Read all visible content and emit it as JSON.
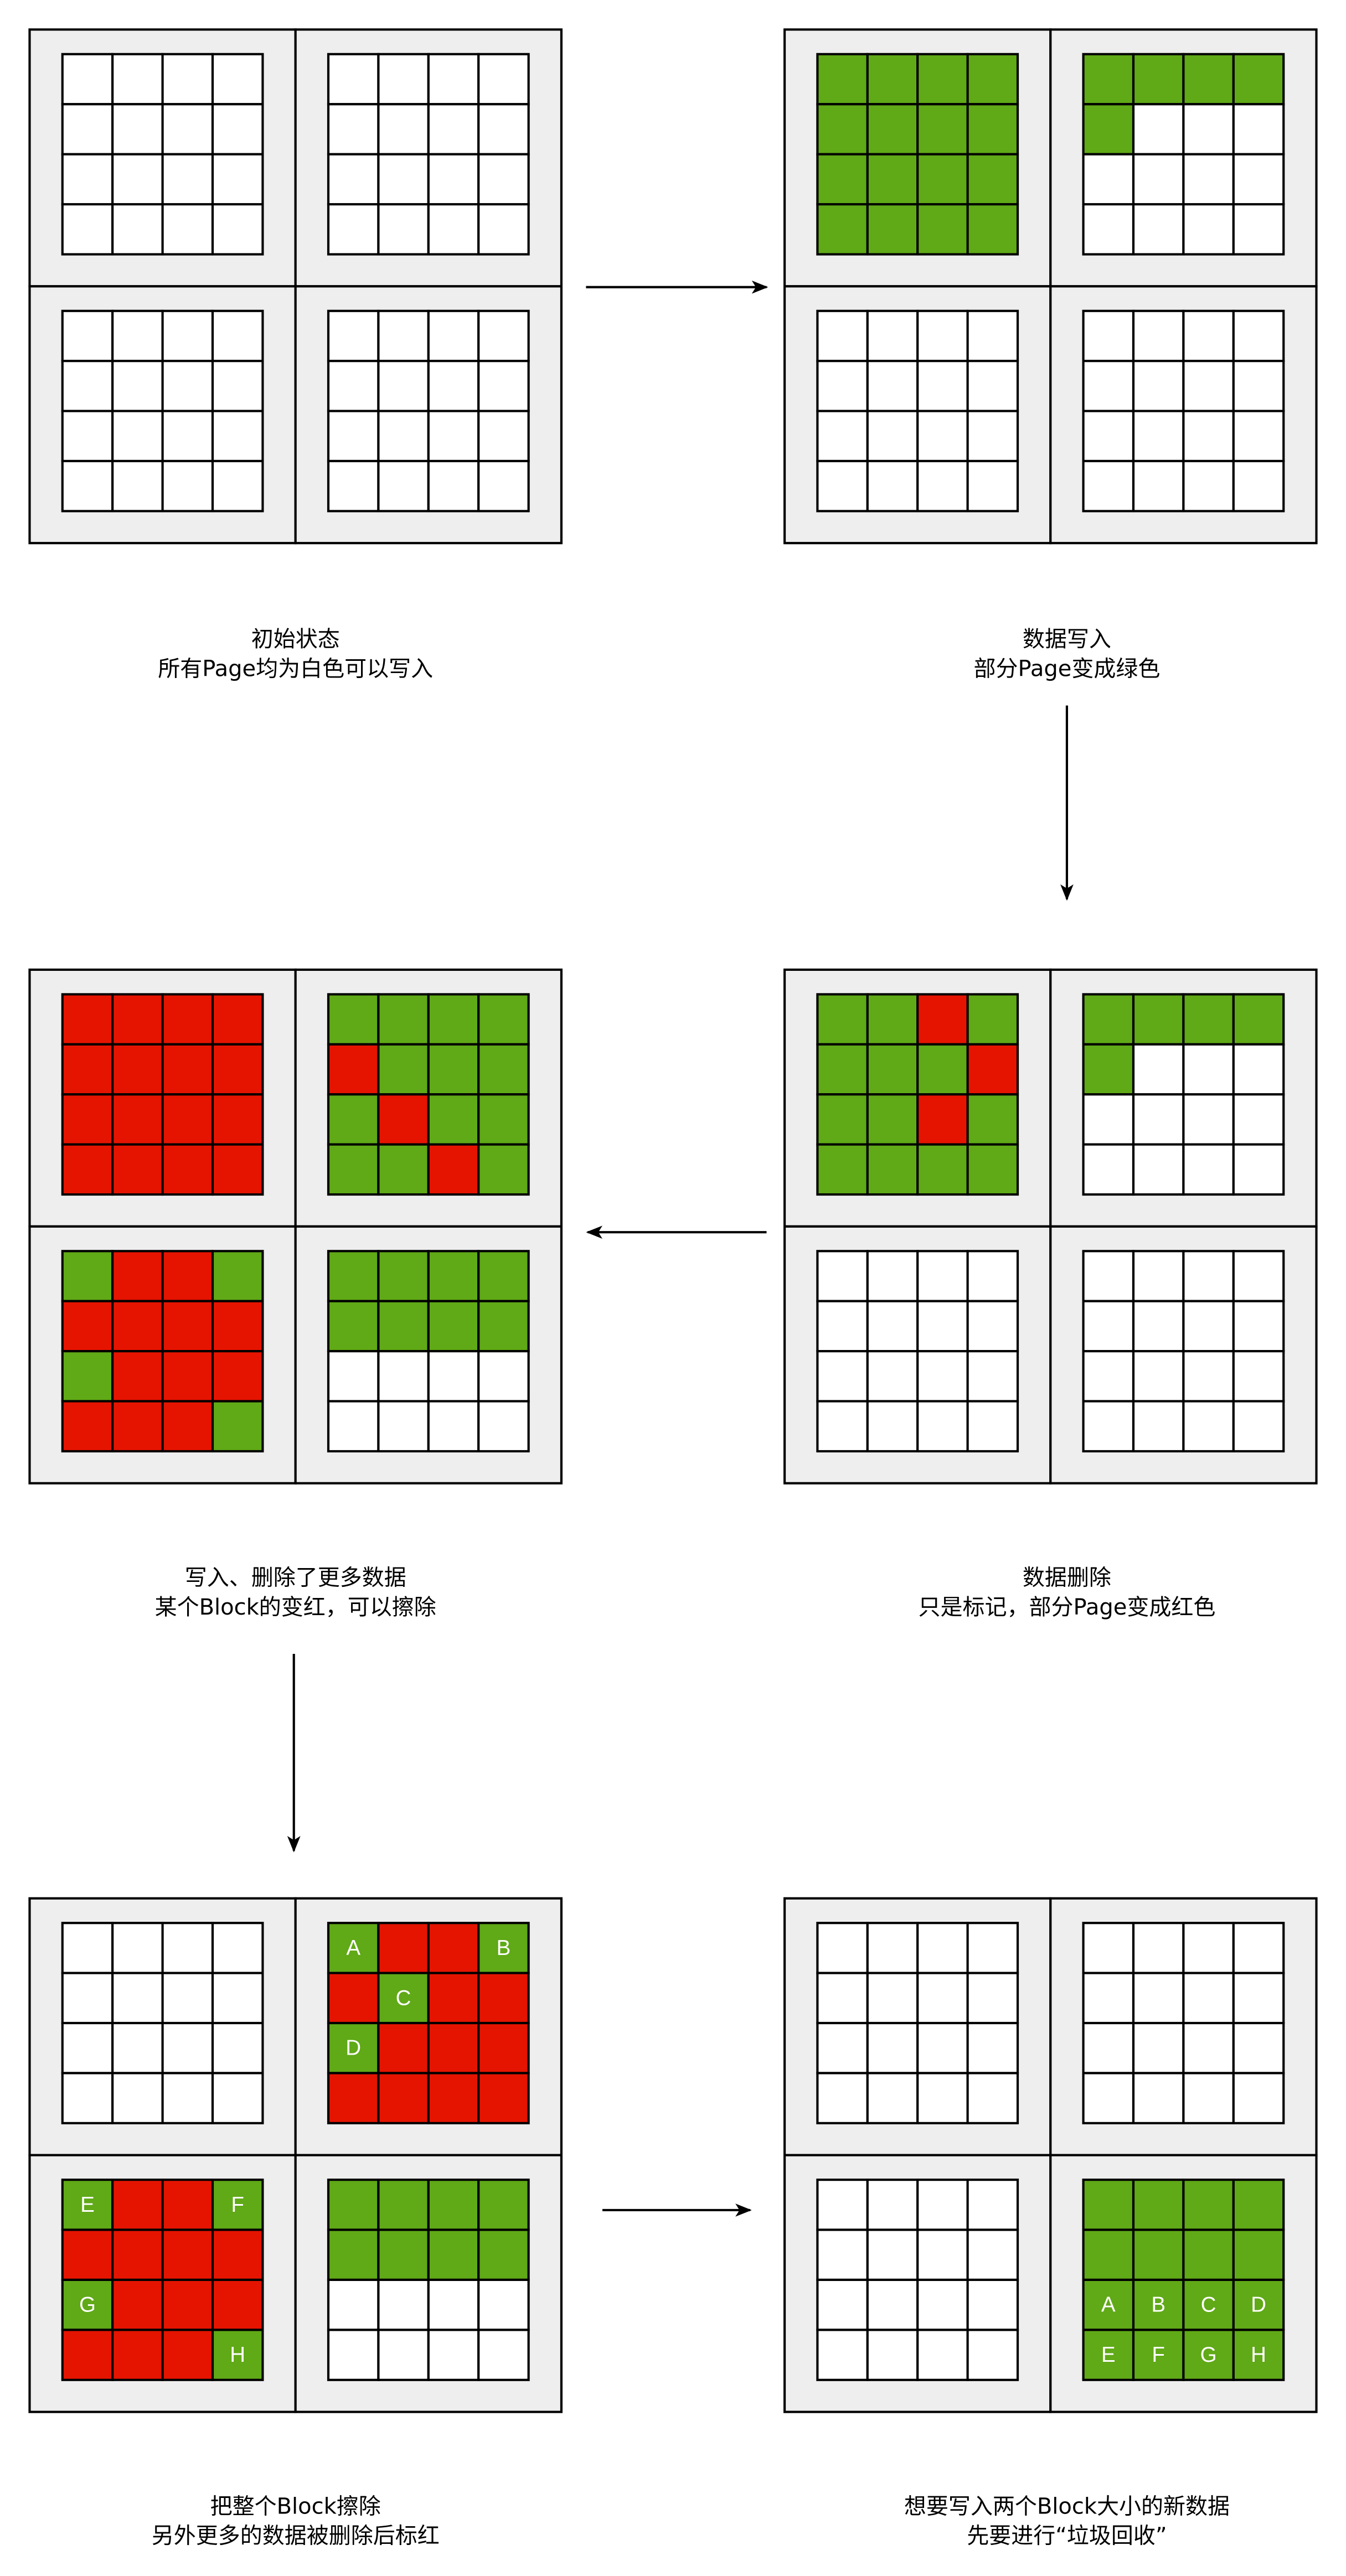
{
  "colors": {
    "white": "#ffffff",
    "green": "#60a917",
    "red": "#e51400",
    "block_bg": "#eeeeee",
    "line": "#000000"
  },
  "legend_codes": {
    "W": "free page (white)",
    "G": "valid data (green)",
    "R": "deleted/stale (red)"
  },
  "diagrams": [
    {
      "caption": [
        "初始状态",
        "所有Page均为白色可以写入"
      ],
      "blocks": [
        [
          "WWWW",
          "WWWW",
          "WWWW",
          "WWWW"
        ],
        [
          "WWWW",
          "WWWW",
          "WWWW",
          "WWWW"
        ],
        [
          "WWWW",
          "WWWW",
          "WWWW",
          "WWWW"
        ],
        [
          "WWWW",
          "WWWW",
          "WWWW",
          "WWWW"
        ]
      ],
      "labels": [
        [],
        [],
        [],
        []
      ]
    },
    {
      "caption": [
        "数据写入",
        "部分Page变成绿色"
      ],
      "blocks": [
        [
          "GGGG",
          "GGGG",
          "GGGG",
          "GGGG"
        ],
        [
          "GGGG",
          "GWWW",
          "WWWW",
          "WWWW"
        ],
        [
          "WWWW",
          "WWWW",
          "WWWW",
          "WWWW"
        ],
        [
          "WWWW",
          "WWWW",
          "WWWW",
          "WWWW"
        ]
      ],
      "labels": [
        [],
        [],
        [],
        []
      ]
    },
    {
      "caption": [
        "数据删除",
        "只是标记，部分Page变成红色"
      ],
      "blocks": [
        [
          "GGRG",
          "GGGR",
          "GGRG",
          "GGGG"
        ],
        [
          "GGGG",
          "GWWW",
          "WWWW",
          "WWWW"
        ],
        [
          "WWWW",
          "WWWW",
          "WWWW",
          "WWWW"
        ],
        [
          "WWWW",
          "WWWW",
          "WWWW",
          "WWWW"
        ]
      ],
      "labels": [
        [],
        [],
        [],
        []
      ]
    },
    {
      "caption": [
        "写入、删除了更多数据",
        "某个Block的变红，可以擦除"
      ],
      "blocks": [
        [
          "RRRR",
          "RRRR",
          "RRRR",
          "RRRR"
        ],
        [
          "GGGG",
          "RGGG",
          "GRGG",
          "GGRG"
        ],
        [
          "GRRG",
          "RRRR",
          "GRRR",
          "RRRG"
        ],
        [
          "GGGG",
          "GGGG",
          "WWWW",
          "WWWW"
        ]
      ],
      "labels": [
        [],
        [],
        [],
        []
      ]
    },
    {
      "caption": [
        "把整个Block擦除",
        "另外更多的数据被删除后标红"
      ],
      "blocks": [
        [
          "WWWW",
          "WWWW",
          "WWWW",
          "WWWW"
        ],
        [
          "GRRG",
          "RGRR",
          "GRRR",
          "RRRR"
        ],
        [
          "GRRG",
          "RRRR",
          "GRRR",
          "RRRG"
        ],
        [
          "GGGG",
          "GGGG",
          "WWWW",
          "WWWW"
        ]
      ],
      "labels": [
        [],
        [
          [
            "A",
            0,
            0
          ],
          [
            "B",
            0,
            3
          ],
          [
            "C",
            1,
            1
          ],
          [
            "D",
            2,
            0
          ]
        ],
        [
          [
            "E",
            0,
            0
          ],
          [
            "F",
            0,
            3
          ],
          [
            "G",
            2,
            0
          ],
          [
            "H",
            3,
            3
          ]
        ],
        []
      ]
    },
    {
      "caption": [
        "想要写入两个Block大小的新数据",
        "先要进行“垃圾回收”"
      ],
      "blocks": [
        [
          "WWWW",
          "WWWW",
          "WWWW",
          "WWWW"
        ],
        [
          "WWWW",
          "WWWW",
          "WWWW",
          "WWWW"
        ],
        [
          "WWWW",
          "WWWW",
          "WWWW",
          "WWWW"
        ],
        [
          "GGGG",
          "GGGG",
          "GGGG",
          "GGGG"
        ]
      ],
      "labels": [
        [],
        [],
        [],
        [
          [
            "A",
            2,
            0
          ],
          [
            "B",
            2,
            1
          ],
          [
            "C",
            2,
            2
          ],
          [
            "D",
            2,
            3
          ],
          [
            "E",
            3,
            0
          ],
          [
            "F",
            3,
            1
          ],
          [
            "G",
            3,
            2
          ],
          [
            "H",
            3,
            3
          ]
        ]
      ]
    }
  ]
}
